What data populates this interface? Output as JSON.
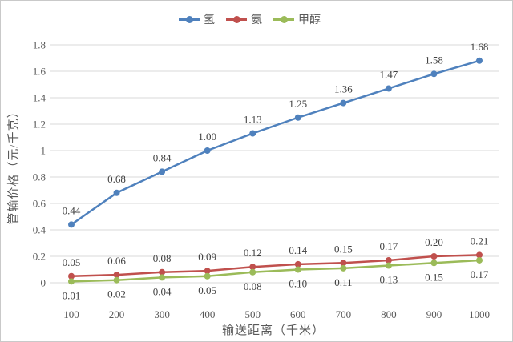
{
  "chart_data": {
    "type": "line",
    "title": "",
    "x": [
      100,
      200,
      300,
      400,
      500,
      600,
      700,
      800,
      900,
      1000
    ],
    "x_tick_labels": [
      "100",
      "200",
      "300",
      "400",
      "500",
      "600",
      "700",
      "800",
      "900",
      "1000"
    ],
    "xlabel": "输送距离（千米）",
    "ylabel": "管输价格（元/千克）",
    "ylim": [
      0,
      1.8
    ],
    "y_ticks": [
      0,
      0.2,
      0.4,
      0.6,
      0.8,
      1,
      1.2,
      1.4,
      1.6,
      1.8
    ],
    "y_tick_labels": [
      "0",
      "0.2",
      "0.4",
      "0.6",
      "0.8",
      "1",
      "1.2",
      "1.4",
      "1.6",
      "1.8"
    ],
    "grid": true,
    "legend_position": "top-center",
    "series": [
      {
        "name": "氢",
        "color": "#4f81bd",
        "marker": "circle",
        "label_position": "above",
        "values": [
          0.44,
          0.68,
          0.84,
          1.0,
          1.13,
          1.25,
          1.36,
          1.47,
          1.58,
          1.68
        ],
        "labels": [
          "0.44",
          "0.68",
          "0.84",
          "1.00",
          "1.13",
          "1.25",
          "1.36",
          "1.47",
          "1.58",
          "1.68"
        ]
      },
      {
        "name": "氨",
        "color": "#c0504d",
        "marker": "circle",
        "label_position": "above",
        "values": [
          0.05,
          0.06,
          0.08,
          0.09,
          0.12,
          0.14,
          0.15,
          0.17,
          0.2,
          0.21
        ],
        "labels": [
          "0.05",
          "0.06",
          "0.08",
          "0.09",
          "0.12",
          "0.14",
          "0.15",
          "0.17",
          "0.20",
          "0.21"
        ]
      },
      {
        "name": "甲醇",
        "color": "#9bbb59",
        "marker": "circle",
        "label_position": "below",
        "values": [
          0.01,
          0.02,
          0.04,
          0.05,
          0.08,
          0.1,
          0.11,
          0.13,
          0.15,
          0.17
        ],
        "labels": [
          "0.01",
          "0.02",
          "0.04",
          "0.05",
          "0.08",
          "0.10",
          "0.11",
          "0.13",
          "0.15",
          "0.17"
        ]
      }
    ],
    "palette": {
      "background": "#ffffff",
      "border": "#c9c9c9",
      "gridline": "#d9d9d9",
      "tick_text": "#595959",
      "data_label_text": "#404040"
    }
  }
}
